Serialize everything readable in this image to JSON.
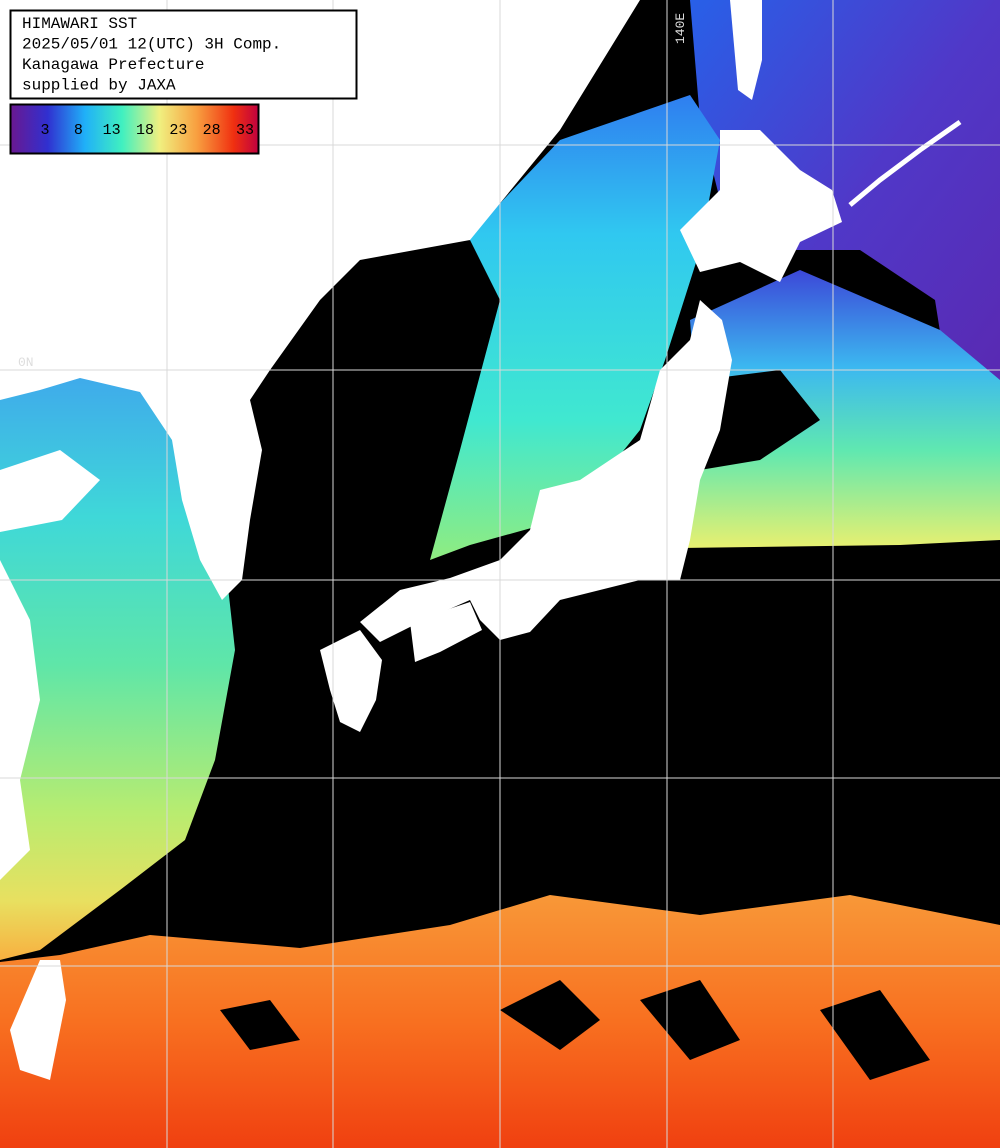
{
  "header": {
    "lines": [
      "HIMAWARI SST",
      "2025/05/01 12(UTC) 3H Comp.",
      "Kanagawa Prefecture",
      "supplied by JAXA"
    ]
  },
  "colorbar": {
    "labels": [
      3,
      8,
      13,
      18,
      23,
      28,
      33
    ]
  },
  "grid_labels": {
    "longitude": "140E",
    "latitude": "0N"
  }
}
